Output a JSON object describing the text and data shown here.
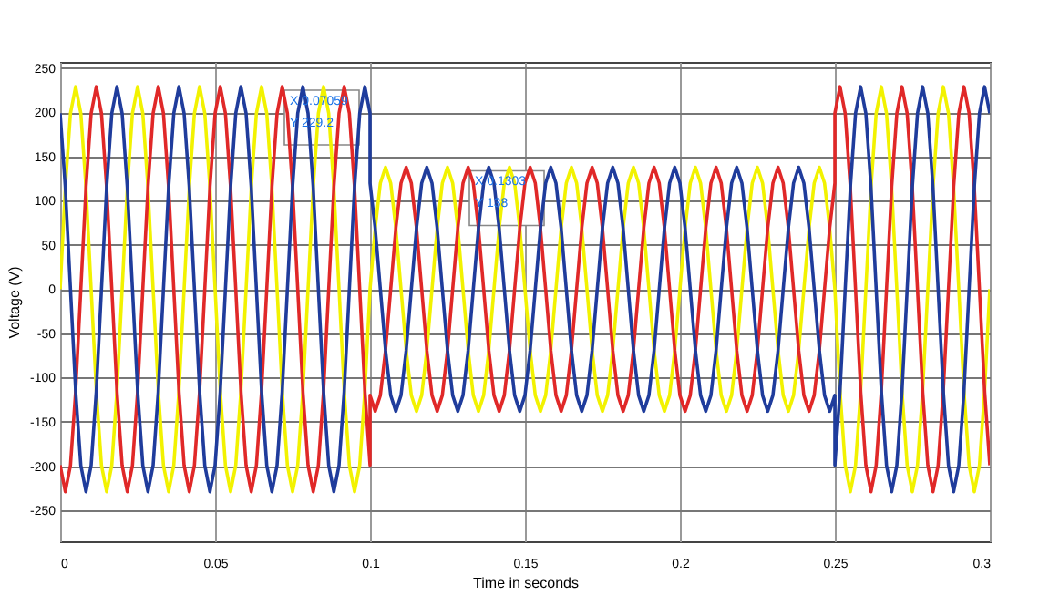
{
  "chart_data": {
    "type": "line",
    "xlabel": "Time in seconds",
    "ylabel": "Voltage (V)",
    "xlim": [
      0,
      0.3
    ],
    "xticks": [
      0,
      0.05,
      0.1,
      0.15,
      0.2,
      0.25,
      0.3
    ],
    "ylim": [
      -285,
      257
    ],
    "yticks": [
      -250,
      -200,
      -150,
      -100,
      -50,
      0,
      50,
      100,
      150,
      200,
      250
    ],
    "grid": true,
    "line_style": "solid",
    "annotations": [
      {
        "text": "X 0.07059\nY 229.2",
        "x": 0.07059,
        "y": 229.2
      },
      {
        "text": "X 0.1303\nY 138",
        "x": 0.1303,
        "y": 138
      }
    ],
    "x": [
      0,
      0.00167,
      0.00333,
      0.005,
      0.00667,
      0.00833,
      0.01,
      0.01167,
      0.01333,
      0.015,
      0.01667,
      0.01833,
      0.02,
      0.02167,
      0.02333,
      0.025,
      0.02667,
      0.02833,
      0.03,
      0.03167,
      0.03333,
      0.035,
      0.03667,
      0.03833,
      0.04,
      0.04167,
      0.04333,
      0.045,
      0.04667,
      0.04833,
      0.05,
      0.05167,
      0.05333,
      0.055,
      0.05667,
      0.05833,
      0.06,
      0.06167,
      0.06333,
      0.065,
      0.06667,
      0.06833,
      0.07,
      0.07167,
      0.07333,
      0.075,
      0.07667,
      0.07833,
      0.08,
      0.08167,
      0.08333,
      0.085,
      0.08667,
      0.08833,
      0.09,
      0.09167,
      0.09333,
      0.095,
      0.09667,
      0.09833,
      0.1,
      0.1,
      0.10167,
      0.10333,
      0.105,
      0.10667,
      0.10833,
      0.11,
      0.11167,
      0.11333,
      0.115,
      0.11667,
      0.11833,
      0.12,
      0.12167,
      0.12333,
      0.125,
      0.12667,
      0.12833,
      0.13,
      0.13167,
      0.13333,
      0.135,
      0.13667,
      0.13833,
      0.14,
      0.14167,
      0.14333,
      0.145,
      0.14667,
      0.14833,
      0.15,
      0.15167,
      0.15333,
      0.155,
      0.15667,
      0.15833,
      0.16,
      0.16167,
      0.16333,
      0.165,
      0.16667,
      0.16833,
      0.17,
      0.17167,
      0.17333,
      0.175,
      0.17667,
      0.17833,
      0.18,
      0.18167,
      0.18333,
      0.185,
      0.18667,
      0.18833,
      0.19,
      0.19167,
      0.19333,
      0.195,
      0.19667,
      0.19833,
      0.2,
      0.20167,
      0.20333,
      0.205,
      0.20667,
      0.20833,
      0.21,
      0.21167,
      0.21333,
      0.215,
      0.21667,
      0.21833,
      0.22,
      0.22167,
      0.22333,
      0.225,
      0.22667,
      0.22833,
      0.23,
      0.23167,
      0.23333,
      0.235,
      0.23667,
      0.23833,
      0.24,
      0.24167,
      0.24333,
      0.245,
      0.24667,
      0.24833,
      0.25,
      0.25,
      0.25167,
      0.25333,
      0.255,
      0.25667,
      0.25833,
      0.26,
      0.26167,
      0.26333,
      0.265,
      0.26667,
      0.26833,
      0.27,
      0.27167,
      0.27333,
      0.275,
      0.27667,
      0.27833,
      0.28,
      0.28167,
      0.28333,
      0.285,
      0.28667,
      0.28833,
      0.29,
      0.29167,
      0.29333,
      0.295,
      0.29667,
      0.29833,
      0.3
    ],
    "series": [
      {
        "color": "#f2f200",
        "values": [
          0,
          115,
          199,
          229,
          199,
          115,
          0,
          -115,
          -199,
          -229,
          -199,
          -115,
          0,
          115,
          199,
          229,
          199,
          115,
          0,
          -115,
          -199,
          -229,
          -199,
          -115,
          0,
          115,
          199,
          229,
          199,
          115,
          0,
          -115,
          -199,
          -229,
          -199,
          -115,
          0,
          115,
          199,
          229,
          199,
          115,
          0,
          -115,
          -199,
          -229,
          -199,
          -115,
          0,
          115,
          199,
          229,
          199,
          115,
          0,
          -115,
          -199,
          -229,
          -199,
          -115,
          0,
          0,
          69,
          120,
          138,
          120,
          69,
          0,
          -69,
          -120,
          -138,
          -120,
          -69,
          0,
          69,
          120,
          138,
          120,
          69,
          0,
          -69,
          -120,
          -138,
          -120,
          -69,
          0,
          69,
          120,
          138,
          120,
          69,
          0,
          -69,
          -120,
          -138,
          -120,
          -69,
          0,
          69,
          120,
          138,
          120,
          69,
          0,
          -69,
          -120,
          -138,
          -120,
          -69,
          0,
          69,
          120,
          138,
          120,
          69,
          0,
          -69,
          -120,
          -138,
          -120,
          -69,
          0,
          69,
          120,
          138,
          120,
          69,
          0,
          -69,
          -120,
          -138,
          -120,
          -69,
          0,
          69,
          120,
          138,
          120,
          69,
          0,
          -69,
          -120,
          -138,
          -120,
          -69,
          0,
          69,
          120,
          138,
          120,
          69,
          0,
          0,
          -115,
          -199,
          -229,
          -199,
          -115,
          0,
          115,
          199,
          229,
          199,
          115,
          0,
          -115,
          -199,
          -229,
          -199,
          -115,
          0,
          115,
          199,
          229,
          199,
          115,
          0,
          -115,
          -199,
          -229,
          -199,
          -115,
          0
        ]
      },
      {
        "color": "#e02828",
        "values": [
          -199,
          -229,
          -199,
          -115,
          0,
          115,
          199,
          229,
          199,
          115,
          0,
          -115,
          -199,
          -229,
          -199,
          -115,
          0,
          115,
          199,
          229,
          199,
          115,
          0,
          -115,
          -199,
          -229,
          -199,
          -115,
          0,
          115,
          199,
          229,
          199,
          115,
          0,
          -115,
          -199,
          -229,
          -199,
          -115,
          0,
          115,
          199,
          229,
          199,
          115,
          0,
          -115,
          -199,
          -229,
          -199,
          -115,
          0,
          115,
          199,
          229,
          199,
          115,
          0,
          -115,
          -199,
          -120,
          -138,
          -120,
          -69,
          0,
          69,
          120,
          138,
          120,
          69,
          0,
          -69,
          -120,
          -138,
          -120,
          -69,
          0,
          69,
          120,
          138,
          120,
          69,
          0,
          -69,
          -120,
          -138,
          -120,
          -69,
          0,
          69,
          120,
          138,
          120,
          69,
          0,
          -69,
          -120,
          -138,
          -120,
          -69,
          0,
          69,
          120,
          138,
          120,
          69,
          0,
          -69,
          -120,
          -138,
          -120,
          -69,
          0,
          69,
          120,
          138,
          120,
          69,
          0,
          -69,
          -120,
          -138,
          -120,
          -69,
          0,
          69,
          120,
          138,
          120,
          69,
          0,
          -69,
          -120,
          -138,
          -120,
          -69,
          0,
          69,
          120,
          138,
          120,
          69,
          0,
          -69,
          -120,
          -138,
          -120,
          -69,
          0,
          69,
          120,
          199,
          229,
          199,
          115,
          0,
          -115,
          -199,
          -229,
          -199,
          -115,
          0,
          115,
          199,
          229,
          199,
          115,
          0,
          -115,
          -199,
          -229,
          -199,
          -115,
          0,
          115,
          199,
          229,
          199,
          115,
          0,
          -115,
          -199
        ]
      },
      {
        "color": "#1f3c9c",
        "values": [
          199,
          115,
          0,
          -115,
          -199,
          -229,
          -199,
          -115,
          0,
          115,
          199,
          229,
          199,
          115,
          0,
          -115,
          -199,
          -229,
          -199,
          -115,
          0,
          115,
          199,
          229,
          199,
          115,
          0,
          -115,
          -199,
          -229,
          -199,
          -115,
          0,
          115,
          199,
          229,
          199,
          115,
          0,
          -115,
          -199,
          -229,
          -199,
          -115,
          0,
          115,
          199,
          229,
          199,
          115,
          0,
          -115,
          -199,
          -229,
          -199,
          -115,
          0,
          115,
          199,
          229,
          199,
          120,
          69,
          0,
          -69,
          -120,
          -138,
          -120,
          -69,
          0,
          69,
          120,
          138,
          120,
          69,
          0,
          -69,
          -120,
          -138,
          -120,
          -69,
          0,
          69,
          120,
          138,
          120,
          69,
          0,
          -69,
          -120,
          -138,
          -120,
          -69,
          0,
          69,
          120,
          138,
          120,
          69,
          0,
          -69,
          -120,
          -138,
          -120,
          -69,
          0,
          69,
          120,
          138,
          120,
          69,
          0,
          -69,
          -120,
          -138,
          -120,
          -69,
          0,
          69,
          120,
          138,
          120,
          69,
          0,
          -69,
          -120,
          -138,
          -120,
          -69,
          0,
          69,
          120,
          138,
          120,
          69,
          0,
          -69,
          -120,
          -138,
          -120,
          -69,
          0,
          69,
          120,
          138,
          120,
          69,
          0,
          -69,
          -120,
          -138,
          -120,
          -199,
          -115,
          0,
          115,
          199,
          229,
          199,
          115,
          0,
          -115,
          -199,
          -229,
          -199,
          -115,
          0,
          115,
          199,
          229,
          199,
          115,
          0,
          -115,
          -199,
          -229,
          -199,
          -115,
          0,
          115,
          199,
          229,
          199
        ]
      }
    ]
  }
}
